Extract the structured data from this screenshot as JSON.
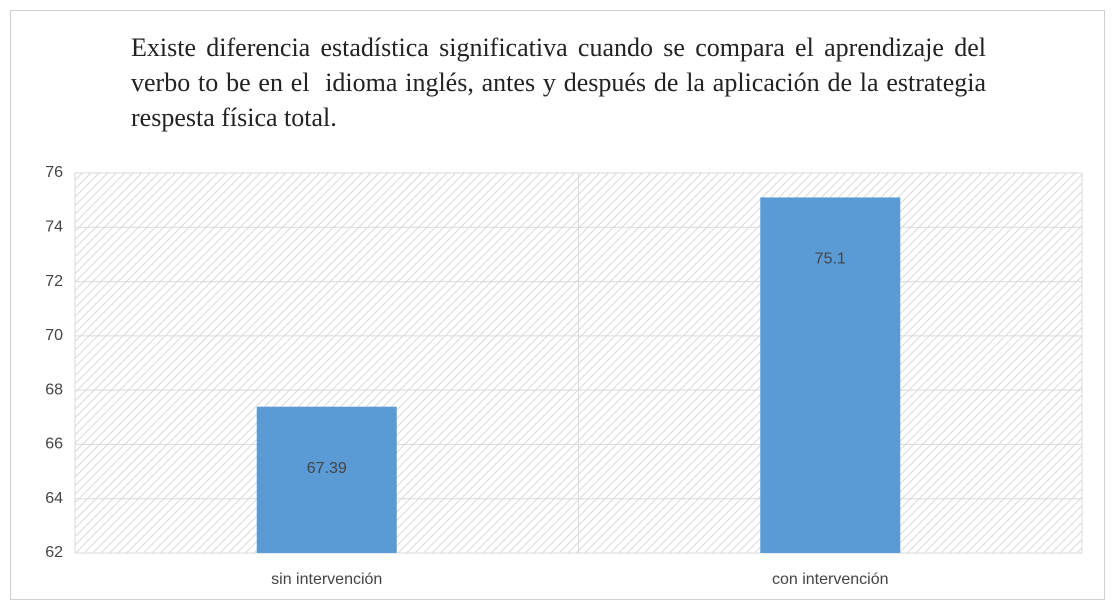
{
  "chart_data": {
    "type": "bar",
    "title": "Existe diferencia estadística significativa cuando se compara el aprendizaje del  verbo to be en el  idioma inglés, antes y después de la aplicación de la estrategia respesta física total.",
    "categories": [
      "sin intervención",
      "con intervención"
    ],
    "values": [
      67.39,
      75.1
    ],
    "color": "#5b9bd5",
    "ylim": [
      62,
      76
    ],
    "yticks": [
      62,
      64,
      66,
      68,
      70,
      72,
      74,
      76
    ],
    "grid": true
  }
}
